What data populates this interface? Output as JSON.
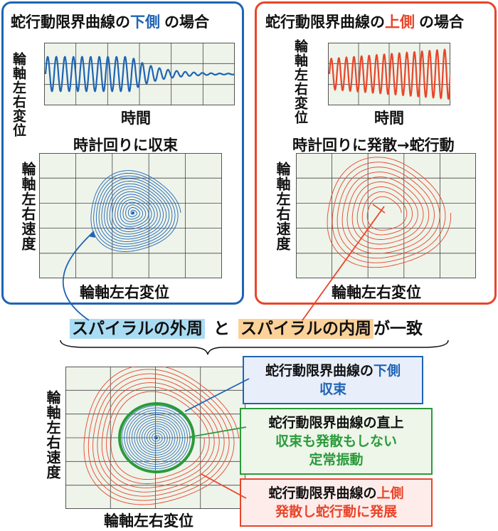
{
  "left_panel": {
    "title_prefix": "蛇行動限界曲線の",
    "title_highlight": "下側",
    "title_suffix": "の場合",
    "wave_ylabel": "輪軸左右変位",
    "wave_xlabel": "時間",
    "phase_title": "時計回りに収束",
    "phase_ylabel": "輪軸左右速度",
    "phase_xlabel": "輪軸左右変位"
  },
  "right_panel": {
    "title_prefix": "蛇行動限界曲線の",
    "title_highlight": "上側",
    "title_suffix": "の場合",
    "wave_ylabel": "輪軸左右変位",
    "wave_xlabel": "時間",
    "phase_title": "時計回りに発散→蛇行動",
    "phase_ylabel": "輪軸左右速度",
    "phase_xlabel": "輪軸左右変位"
  },
  "middle": {
    "outer_label": "スパイラルの外周",
    "connector": "と",
    "inner_label": "スパイラルの内周",
    "suffix": "が一致"
  },
  "bottom": {
    "ylabel": "輪軸左右速度",
    "xlabel": "輪軸左右変位",
    "box1_prefix": "蛇行動限界曲線の",
    "box1_highlight": "下側",
    "box1_line2": "収束",
    "box2_line1": "蛇行動限界曲線の直上",
    "box2_line2": "収束も発散もしない",
    "box2_line3": "定常振動",
    "box3_prefix": "蛇行動限界曲線の",
    "box3_highlight": "上側",
    "box3_line2": "発散し蛇行動に発展"
  },
  "colors": {
    "blue": "#1f64b4",
    "red": "#e8452a",
    "green": "#2b9a3a",
    "grid_bg": "#eef4ea",
    "highlight_blue": "#a9dcf3",
    "highlight_orange": "#fcd29a"
  }
}
